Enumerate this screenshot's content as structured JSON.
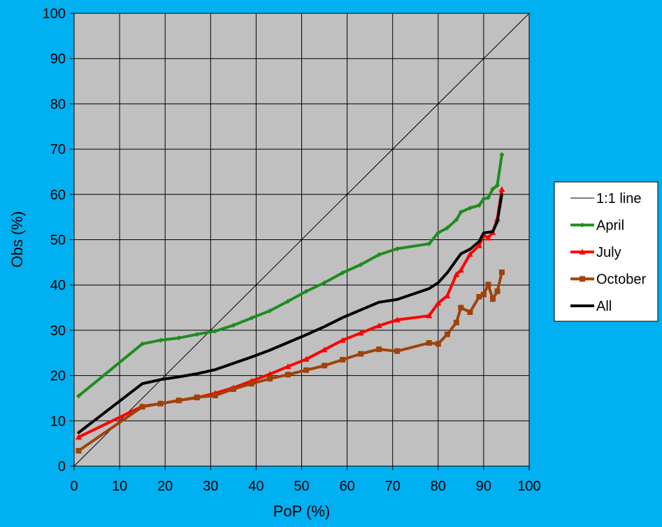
{
  "chart_data": {
    "type": "line",
    "title": "",
    "xlabel": "PoP (%)",
    "ylabel": "Obs (%)",
    "xlim": [
      0,
      100
    ],
    "ylim": [
      0,
      100
    ],
    "x_ticks": [
      0,
      10,
      20,
      30,
      40,
      50,
      60,
      70,
      80,
      90,
      100
    ],
    "y_ticks": [
      0,
      10,
      20,
      30,
      40,
      50,
      60,
      70,
      80,
      90,
      100
    ],
    "grid": true,
    "legend_position": "right",
    "colors": {
      "background": "#00B0F0",
      "plot_area": "#C0C0C0",
      "grid": "#000000"
    },
    "series": [
      {
        "name": "1:1 line",
        "color": "#000000",
        "width": 1,
        "marker": "none",
        "points": [
          [
            0,
            0
          ],
          [
            100,
            100
          ]
        ]
      },
      {
        "name": "April",
        "color": "#1E8C1E",
        "width": 4,
        "marker": "diamond",
        "points": [
          [
            1,
            15.5
          ],
          [
            15,
            27.0
          ],
          [
            19,
            27.8
          ],
          [
            23,
            28.3
          ],
          [
            27,
            29.1
          ],
          [
            31,
            29.8
          ],
          [
            35,
            31.1
          ],
          [
            39,
            32.7
          ],
          [
            43,
            34.3
          ],
          [
            47,
            36.4
          ],
          [
            51,
            38.6
          ],
          [
            55,
            40.5
          ],
          [
            59,
            42.7
          ],
          [
            63,
            44.5
          ],
          [
            67,
            46.7
          ],
          [
            71,
            48.0
          ],
          [
            78,
            49.1
          ],
          [
            80,
            51.5
          ],
          [
            82,
            52.6
          ],
          [
            84,
            54.4
          ],
          [
            85,
            56.1
          ],
          [
            87,
            57.0
          ],
          [
            89,
            57.6
          ],
          [
            90,
            59.0
          ],
          [
            91,
            59.3
          ],
          [
            92,
            61.2
          ],
          [
            93,
            62.0
          ],
          [
            94,
            68.8
          ]
        ]
      },
      {
        "name": "July",
        "color": "#FF0000",
        "width": 4,
        "marker": "triangle",
        "points": [
          [
            1,
            6.4
          ],
          [
            15,
            13.2
          ],
          [
            19,
            13.8
          ],
          [
            23,
            14.5
          ],
          [
            27,
            15.1
          ],
          [
            31,
            16.1
          ],
          [
            35,
            17.3
          ],
          [
            39,
            18.8
          ],
          [
            43,
            20.3
          ],
          [
            47,
            22.0
          ],
          [
            51,
            23.6
          ],
          [
            55,
            25.7
          ],
          [
            59,
            27.8
          ],
          [
            63,
            29.4
          ],
          [
            67,
            31.0
          ],
          [
            71,
            32.3
          ],
          [
            78,
            33.2
          ],
          [
            80,
            36.0
          ],
          [
            82,
            37.6
          ],
          [
            84,
            42.3
          ],
          [
            85,
            43.3
          ],
          [
            87,
            46.8
          ],
          [
            89,
            48.7
          ],
          [
            90,
            51.0
          ],
          [
            91,
            50.4
          ],
          [
            92,
            51.6
          ],
          [
            93,
            54.6
          ],
          [
            94,
            61.1
          ]
        ]
      },
      {
        "name": "October",
        "color": "#A0420A",
        "width": 4,
        "marker": "square",
        "points": [
          [
            1,
            3.4
          ],
          [
            15,
            13.1
          ],
          [
            19,
            13.8
          ],
          [
            23,
            14.5
          ],
          [
            27,
            15.2
          ],
          [
            31,
            15.6
          ],
          [
            35,
            17.0
          ],
          [
            39,
            18.2
          ],
          [
            43,
            19.3
          ],
          [
            47,
            20.2
          ],
          [
            51,
            21.2
          ],
          [
            55,
            22.2
          ],
          [
            59,
            23.5
          ],
          [
            63,
            24.8
          ],
          [
            67,
            25.8
          ],
          [
            71,
            25.4
          ],
          [
            78,
            27.2
          ],
          [
            80,
            27.0
          ],
          [
            82,
            29.1
          ],
          [
            84,
            31.7
          ],
          [
            85,
            35.0
          ],
          [
            87,
            34.0
          ],
          [
            89,
            37.4
          ],
          [
            90,
            37.9
          ],
          [
            91,
            40.1
          ],
          [
            92,
            36.9
          ],
          [
            93,
            38.6
          ],
          [
            94,
            42.8
          ]
        ]
      },
      {
        "name": "All",
        "color": "#000000",
        "width": 4,
        "marker": "none",
        "points": [
          [
            1,
            7.4
          ],
          [
            15,
            18.2
          ],
          [
            19,
            19.1
          ],
          [
            23,
            19.7
          ],
          [
            27,
            20.4
          ],
          [
            31,
            21.3
          ],
          [
            35,
            22.7
          ],
          [
            39,
            24.1
          ],
          [
            43,
            25.6
          ],
          [
            47,
            27.3
          ],
          [
            51,
            29.0
          ],
          [
            55,
            30.8
          ],
          [
            59,
            32.8
          ],
          [
            63,
            34.5
          ],
          [
            67,
            36.2
          ],
          [
            71,
            36.8
          ],
          [
            78,
            39.2
          ],
          [
            80,
            40.5
          ],
          [
            82,
            42.7
          ],
          [
            84,
            45.5
          ],
          [
            85,
            46.9
          ],
          [
            87,
            47.9
          ],
          [
            89,
            49.6
          ],
          [
            90,
            51.5
          ],
          [
            92,
            51.8
          ],
          [
            93,
            54.0
          ],
          [
            94,
            60.0
          ]
        ]
      }
    ]
  }
}
